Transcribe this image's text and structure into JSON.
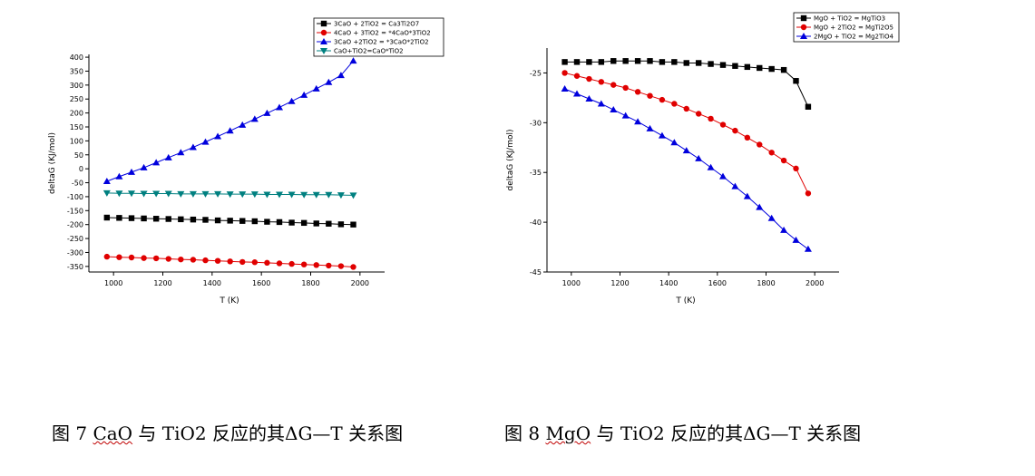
{
  "figures": [
    {
      "caption_parts": [
        "图 7 ",
        "CaO",
        " 与 TiO2 反应的其ΔG—T 关系图"
      ]
    },
    {
      "caption_parts": [
        "图 8 ",
        "MgO",
        " 与 TiO2 反应的其ΔG—T 关系图"
      ]
    }
  ],
  "chart_data": [
    {
      "type": "line",
      "xlabel": "T (K)",
      "ylabel": "deltaG (KJ/mol)",
      "xlim": [
        900,
        2100
      ],
      "ylim": [
        -370,
        410
      ],
      "xticks": [
        1000,
        1200,
        1400,
        1600,
        1800,
        2000
      ],
      "yticks": [
        -350,
        -300,
        -250,
        -200,
        -150,
        -100,
        -50,
        0,
        50,
        100,
        150,
        200,
        250,
        300,
        350,
        400
      ],
      "grid": false,
      "legend_position": "top-right",
      "x": [
        973,
        1023,
        1073,
        1123,
        1173,
        1223,
        1273,
        1323,
        1373,
        1423,
        1473,
        1523,
        1573,
        1623,
        1673,
        1723,
        1773,
        1823,
        1873,
        1923,
        1973
      ],
      "series": [
        {
          "name": "3CaO + 2TiO2 = Ca3Ti2O7",
          "color": "#000000",
          "marker": "square",
          "values": [
            -175,
            -176,
            -177,
            -178,
            -179,
            -180,
            -181,
            -182,
            -183,
            -185,
            -186,
            -187,
            -188,
            -190,
            -191,
            -193,
            -194,
            -196,
            -197,
            -199,
            -200
          ]
        },
        {
          "name": "4CaO + 3TiO2 = *4CaO*3TiO2",
          "color": "#e00000",
          "marker": "circle",
          "values": [
            -315,
            -317,
            -318,
            -320,
            -321,
            -323,
            -325,
            -326,
            -328,
            -330,
            -332,
            -334,
            -335,
            -337,
            -339,
            -341,
            -343,
            -345,
            -347,
            -349,
            -352
          ]
        },
        {
          "name": "3CaO +2TiO2 = *3CaO*2TiO2",
          "color": "#0000dd",
          "marker": "triangle-up",
          "values": [
            -45,
            -28,
            -12,
            4,
            22,
            40,
            58,
            77,
            96,
            116,
            136,
            157,
            178,
            199,
            220,
            242,
            264,
            287,
            310,
            335,
            387
          ]
        },
        {
          "name": "CaO+TiO2=CaO*TiO2",
          "color": "#008080",
          "marker": "triangle-down",
          "values": [
            -87,
            -88,
            -88,
            -89,
            -89,
            -89,
            -90,
            -90,
            -90,
            -90,
            -91,
            -91,
            -91,
            -92,
            -92,
            -92,
            -93,
            -93,
            -93,
            -94,
            -95
          ]
        }
      ]
    },
    {
      "type": "line",
      "xlabel": "T (K)",
      "ylabel": "deltaG (KJ/mol)",
      "xlim": [
        900,
        2100
      ],
      "ylim": [
        -45,
        -22.5
      ],
      "xticks": [
        1000,
        1200,
        1400,
        1600,
        1800,
        2000
      ],
      "yticks": [
        -45,
        -40,
        -35,
        -30,
        -25
      ],
      "grid": false,
      "legend_position": "top-right",
      "x": [
        973,
        1023,
        1073,
        1123,
        1173,
        1223,
        1273,
        1323,
        1373,
        1423,
        1473,
        1523,
        1573,
        1623,
        1673,
        1723,
        1773,
        1823,
        1873,
        1923,
        1973
      ],
      "series": [
        {
          "name": "MgO + TiO2 = MgTiO3",
          "color": "#000000",
          "marker": "square",
          "values": [
            -23.9,
            -23.9,
            -23.9,
            -23.9,
            -23.8,
            -23.8,
            -23.8,
            -23.8,
            -23.9,
            -23.9,
            -24.0,
            -24.0,
            -24.1,
            -24.2,
            -24.3,
            -24.4,
            -24.5,
            -24.6,
            -24.7,
            -25.8,
            -28.4
          ]
        },
        {
          "name": "MgO + 2TiO2 = MgTi2O5",
          "color": "#e00000",
          "marker": "circle",
          "values": [
            -25.0,
            -25.3,
            -25.6,
            -25.9,
            -26.2,
            -26.5,
            -26.9,
            -27.3,
            -27.7,
            -28.1,
            -28.6,
            -29.1,
            -29.6,
            -30.2,
            -30.8,
            -31.5,
            -32.2,
            -33.0,
            -33.8,
            -34.6,
            -37.1
          ]
        },
        {
          "name": "2MgO + TiO2 = Mg2TiO4",
          "color": "#0000dd",
          "marker": "triangle-up",
          "values": [
            -26.6,
            -27.1,
            -27.6,
            -28.1,
            -28.7,
            -29.3,
            -29.9,
            -30.6,
            -31.3,
            -32.0,
            -32.8,
            -33.6,
            -34.5,
            -35.4,
            -36.4,
            -37.4,
            -38.5,
            -39.6,
            -40.8,
            -41.8,
            -42.7
          ]
        }
      ]
    }
  ]
}
